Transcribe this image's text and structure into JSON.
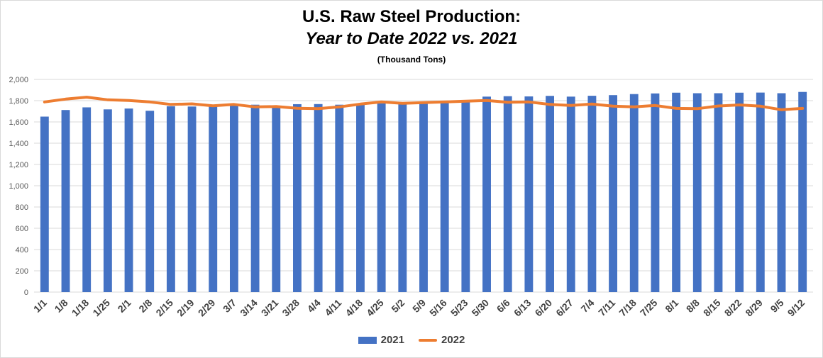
{
  "chart_data": {
    "type": "bar",
    "title": "U.S. Raw Steel Production:",
    "subtitle": "Year to Date 2022 vs. 2021",
    "units_note": "(Thousand Tons)",
    "ylim": [
      0,
      2000
    ],
    "yticks": [
      "2,000",
      "1,800",
      "1,600",
      "1,400",
      "1,200",
      "1,000",
      "800",
      "600",
      "400",
      "200",
      "0"
    ],
    "ytick_values": [
      2000,
      1800,
      1600,
      1400,
      1200,
      1000,
      800,
      600,
      400,
      200,
      0
    ],
    "grid": true,
    "legend_position": "bottom",
    "categories": [
      "1/1",
      "1/8",
      "1/18",
      "1/25",
      "2/1",
      "2/8",
      "2/15",
      "2/19",
      "2/29",
      "3/7",
      "3/14",
      "3/21",
      "3/28",
      "4/4",
      "4/11",
      "4/18",
      "4/25",
      "5/2",
      "5/9",
      "5/16",
      "5/23",
      "5/30",
      "6/6",
      "6/13",
      "6/20",
      "6/27",
      "7/4",
      "7/11",
      "7/18",
      "7/25",
      "8/1",
      "8/8",
      "8/15",
      "8/22",
      "8/29",
      "9/5",
      "9/12"
    ],
    "series": [
      {
        "name": "2021",
        "kind": "bar",
        "color": "#4472C4",
        "values": [
          1650,
          1712,
          1737,
          1718,
          1726,
          1705,
          1748,
          1745,
          1749,
          1755,
          1762,
          1746,
          1767,
          1768,
          1762,
          1770,
          1775,
          1777,
          1780,
          1783,
          1790,
          1838,
          1842,
          1840,
          1845,
          1838,
          1846,
          1852,
          1862,
          1868,
          1875,
          1870,
          1870,
          1875,
          1876,
          1870,
          1882
        ]
      },
      {
        "name": "2022",
        "kind": "line",
        "color": "#ED7D31",
        "values": [
          1788,
          1815,
          1833,
          1808,
          1802,
          1788,
          1765,
          1770,
          1752,
          1765,
          1741,
          1745,
          1728,
          1725,
          1741,
          1768,
          1788,
          1775,
          1782,
          1788,
          1795,
          1802,
          1785,
          1788,
          1765,
          1755,
          1768,
          1748,
          1742,
          1755,
          1727,
          1725,
          1750,
          1760,
          1748,
          1715,
          1727
        ]
      }
    ]
  }
}
